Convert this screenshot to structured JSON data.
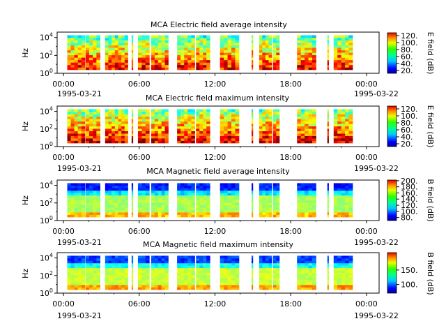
{
  "figure": {
    "instrument": "MCA"
  },
  "chart_data": [
    {
      "type": "heatmap",
      "title": "MCA  Electric field average intensity",
      "xlabel": "",
      "ylabel": "Hz",
      "x_ticks": [
        "00:00",
        "06:00",
        "12:00",
        "18:00",
        "00:00"
      ],
      "x_date_start": "1995-03-21",
      "x_date_end": "1995-03-22",
      "xlim_hours": [
        -0.5,
        25.0
      ],
      "y_scale": "log",
      "ylim_exp": [
        0,
        4.6
      ],
      "y_ticks": [
        {
          "base": "10",
          "exp": "0"
        },
        {
          "base": "10",
          "exp": "2"
        },
        {
          "base": "10",
          "exp": "4"
        }
      ],
      "colorbar": {
        "label": "E field (dB)",
        "ticks": [
          "20.",
          "40.",
          "60.",
          "80.",
          "100.",
          "120."
        ],
        "range": [
          12,
          128
        ]
      },
      "field": "electric"
    },
    {
      "type": "heatmap",
      "title": "MCA  Electric field maximum intensity",
      "xlabel": "",
      "ylabel": "Hz",
      "x_ticks": [
        "00:00",
        "06:00",
        "12:00",
        "18:00",
        "00:00"
      ],
      "x_date_start": "1995-03-21",
      "x_date_end": "1995-03-22",
      "xlim_hours": [
        -0.5,
        25.0
      ],
      "y_scale": "log",
      "ylim_exp": [
        0,
        4.6
      ],
      "y_ticks": [
        {
          "base": "10",
          "exp": "0"
        },
        {
          "base": "10",
          "exp": "2"
        },
        {
          "base": "10",
          "exp": "4"
        }
      ],
      "colorbar": {
        "label": "E field (dB)",
        "ticks": [
          "20.",
          "40.",
          "60.",
          "80.",
          "100.",
          "120."
        ],
        "range": [
          12,
          128
        ]
      },
      "field": "electric"
    },
    {
      "type": "heatmap",
      "title": "MCA  Magnetic field average intensity",
      "xlabel": "",
      "ylabel": "Hz",
      "x_ticks": [
        "00:00",
        "06:00",
        "12:00",
        "18:00",
        "00:00"
      ],
      "x_date_start": "1995-03-21",
      "x_date_end": "1995-03-22",
      "xlim_hours": [
        -0.5,
        25.0
      ],
      "y_scale": "log",
      "ylim_exp": [
        0,
        4.6
      ],
      "y_ticks": [
        {
          "base": "10",
          "exp": "0"
        },
        {
          "base": "10",
          "exp": "2"
        },
        {
          "base": "10",
          "exp": "4"
        }
      ],
      "colorbar": {
        "label": "B field (dB)",
        "ticks": [
          "80.",
          "100.",
          "120.",
          "140.",
          "160.",
          "180.",
          "200."
        ],
        "range": [
          70,
          202
        ]
      },
      "field": "magnetic"
    },
    {
      "type": "heatmap",
      "title": "MCA  Magnetic field maximum intensity",
      "xlabel": "",
      "ylabel": "Hz",
      "x_ticks": [
        "00:00",
        "06:00",
        "12:00",
        "18:00",
        "00:00"
      ],
      "x_date_start": "1995-03-21",
      "x_date_end": "1995-03-22",
      "xlim_hours": [
        -0.5,
        25.0
      ],
      "y_scale": "log",
      "ylim_exp": [
        0,
        4.6
      ],
      "y_ticks": [
        {
          "base": "10",
          "exp": "0"
        },
        {
          "base": "10",
          "exp": "2"
        },
        {
          "base": "10",
          "exp": "4"
        }
      ],
      "colorbar": {
        "label": "B field (dB)",
        "ticks": [
          "100.",
          "150."
        ],
        "range": [
          70,
          210
        ]
      },
      "field": "magnetic"
    }
  ],
  "data_segments_hours": [
    [
      0.3,
      1.7
    ],
    [
      1.75,
      2.9
    ],
    [
      3.3,
      5.1
    ],
    [
      5.4,
      5.5
    ],
    [
      5.9,
      6.8
    ],
    [
      6.95,
      8.3
    ],
    [
      9.0,
      10.4
    ],
    [
      10.5,
      11.6
    ],
    [
      12.4,
      13.9
    ],
    [
      14.9,
      15.0
    ],
    [
      15.5,
      16.5
    ],
    [
      16.6,
      17.1
    ],
    [
      18.5,
      20.0
    ],
    [
      20.9,
      21.0
    ],
    [
      21.4,
      22.9
    ]
  ]
}
